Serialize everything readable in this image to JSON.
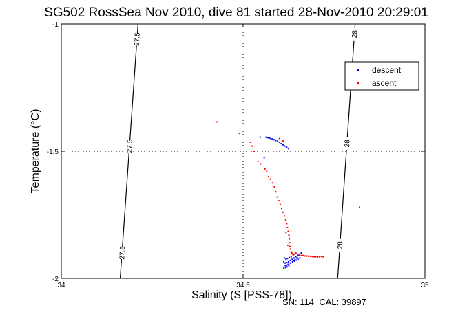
{
  "chart_data": {
    "type": "scatter",
    "title": "SG502 RossSea Nov 2010, dive 81 started 28-Nov-2010 20:29:01",
    "xlabel": "Salinity (S [PSS-78])",
    "ylabel": "Temperature (°C)",
    "xlim": [
      34,
      35
    ],
    "ylim": [
      -2,
      -1
    ],
    "x_ticks": [
      "34",
      "34.5",
      "35"
    ],
    "y_ticks": [
      "-1",
      "-1.5",
      "-2"
    ],
    "grid": "dotted at 34.5 and -1.5",
    "legend": "top-right",
    "footnote": "SN: 114  CAL: 39897",
    "colors": {
      "descent": "#0000ff",
      "ascent": "#ff0000",
      "isopycnal": "#000000"
    },
    "isopycnals": [
      {
        "label": "27.5",
        "points": [
          [
            34.211,
            -1.0
          ],
          [
            34.162,
            -2.0
          ]
        ],
        "label_y": [
          -1.06,
          -1.48,
          -1.9
        ]
      },
      {
        "label": "28",
        "points": [
          [
            34.808,
            -1.0
          ],
          [
            34.76,
            -2.0
          ]
        ],
        "label_y": [
          -1.04,
          -1.47,
          -1.87
        ]
      }
    ],
    "series": [
      {
        "name": "descent",
        "x": [
          34.563,
          34.568,
          34.572,
          34.576,
          34.58,
          34.585,
          34.59,
          34.595,
          34.6,
          34.605,
          34.61,
          34.615,
          34.62,
          34.625,
          34.558,
          34.547,
          34.612,
          34.616,
          34.62,
          34.625,
          34.63,
          34.635,
          34.64,
          34.645,
          34.65,
          34.655,
          34.66,
          34.614,
          34.618,
          34.622,
          34.627,
          34.632,
          34.638,
          34.642,
          34.648,
          34.652,
          34.616,
          34.62,
          34.624,
          34.63,
          34.636,
          34.641,
          34.646,
          34.651,
          34.656,
          34.612,
          34.617,
          34.621,
          34.626
        ],
        "y": [
          -1.445,
          -1.447,
          -1.448,
          -1.45,
          -1.452,
          -1.455,
          -1.458,
          -1.46,
          -1.465,
          -1.47,
          -1.475,
          -1.48,
          -1.485,
          -1.49,
          -1.525,
          -1.445,
          -1.935,
          -1.94,
          -1.938,
          -1.935,
          -1.93,
          -1.925,
          -1.92,
          -1.915,
          -1.91,
          -1.905,
          -1.9,
          -1.92,
          -1.925,
          -1.922,
          -1.918,
          -1.915,
          -1.93,
          -1.928,
          -1.92,
          -1.91,
          -1.95,
          -1.948,
          -1.945,
          -1.94,
          -1.935,
          -1.932,
          -1.928,
          -1.925,
          -1.92,
          -1.96,
          -1.958,
          -1.955,
          -1.95
        ]
      },
      {
        "name": "ascent",
        "x": [
          34.427,
          34.49,
          34.57,
          34.575,
          34.581,
          34.586,
          34.59,
          34.594,
          34.598,
          34.602,
          34.606,
          34.61,
          34.614,
          34.617,
          34.62,
          34.622,
          34.624,
          34.626,
          34.627,
          34.628,
          34.629,
          34.63,
          34.632,
          34.634,
          34.636,
          34.638,
          34.64,
          34.645,
          34.65,
          34.655,
          34.66,
          34.665,
          34.67,
          34.675,
          34.68,
          34.685,
          34.69,
          34.695,
          34.7,
          34.705,
          34.71,
          34.715,
          34.72,
          34.52,
          34.525,
          34.53,
          34.541,
          34.548,
          34.56,
          34.565,
          34.6,
          34.61,
          34.82,
          34.618,
          34.623
        ],
        "y": [
          -1.385,
          -1.43,
          -1.6,
          -1.61,
          -1.625,
          -1.64,
          -1.66,
          -1.68,
          -1.695,
          -1.71,
          -1.725,
          -1.74,
          -1.755,
          -1.77,
          -1.785,
          -1.8,
          -1.815,
          -1.83,
          -1.845,
          -1.86,
          -1.875,
          -1.885,
          -1.895,
          -1.9,
          -1.905,
          -1.91,
          -1.905,
          -1.9,
          -1.905,
          -1.908,
          -1.91,
          -1.91,
          -1.912,
          -1.912,
          -1.913,
          -1.913,
          -1.914,
          -1.915,
          -1.915,
          -1.916,
          -1.915,
          -1.914,
          -1.915,
          -1.465,
          -1.48,
          -1.5,
          -1.54,
          -1.55,
          -1.57,
          -1.58,
          -1.45,
          -1.46,
          -1.72,
          -1.82,
          -1.87
        ]
      }
    ]
  }
}
